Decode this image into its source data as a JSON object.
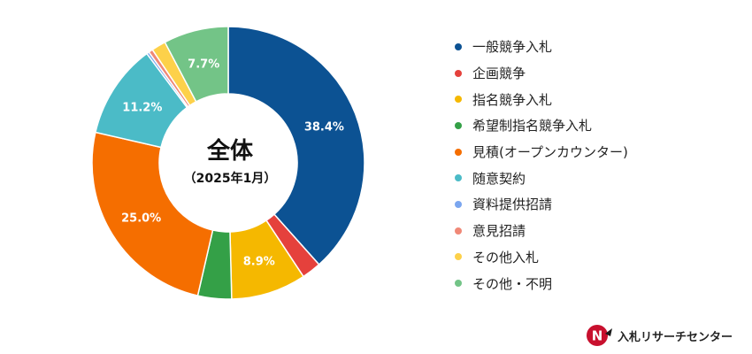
{
  "center": {
    "title": "全体",
    "subtitle": "（2025年1月）"
  },
  "brand": {
    "name": "入札リサーチセンター",
    "logo_letter": "N"
  },
  "chart_data": {
    "type": "pie",
    "donut": true,
    "direction": "clockwise",
    "start": "top",
    "slices": [
      {
        "label": "一般競争入札",
        "value": 38.4,
        "color": "#0c5293",
        "data_label": "38.4%"
      },
      {
        "label": "企画競争",
        "value": 2.3,
        "color": "#e5413c",
        "data_label": ""
      },
      {
        "label": "指名競争入札",
        "value": 8.9,
        "color": "#f5b800",
        "data_label": "8.9%"
      },
      {
        "label": "希望制指名競争入札",
        "value": 4.0,
        "color": "#34a047",
        "data_label": ""
      },
      {
        "label": "見積(オープンカウンター)",
        "value": 25.0,
        "color": "#f56e00",
        "data_label": "25.0%"
      },
      {
        "label": "随意契約",
        "value": 11.2,
        "color": "#4bbbc7",
        "data_label": "11.2%"
      },
      {
        "label": "資料提供招請",
        "value": 0.3,
        "color": "#7ba6ef",
        "data_label": ""
      },
      {
        "label": "意見招請",
        "value": 0.5,
        "color": "#f08877",
        "data_label": ""
      },
      {
        "label": "その他入札",
        "value": 1.7,
        "color": "#fdd14a",
        "data_label": ""
      },
      {
        "label": "その他・不明",
        "value": 7.7,
        "color": "#73c487",
        "data_label": "7.7%"
      }
    ]
  }
}
